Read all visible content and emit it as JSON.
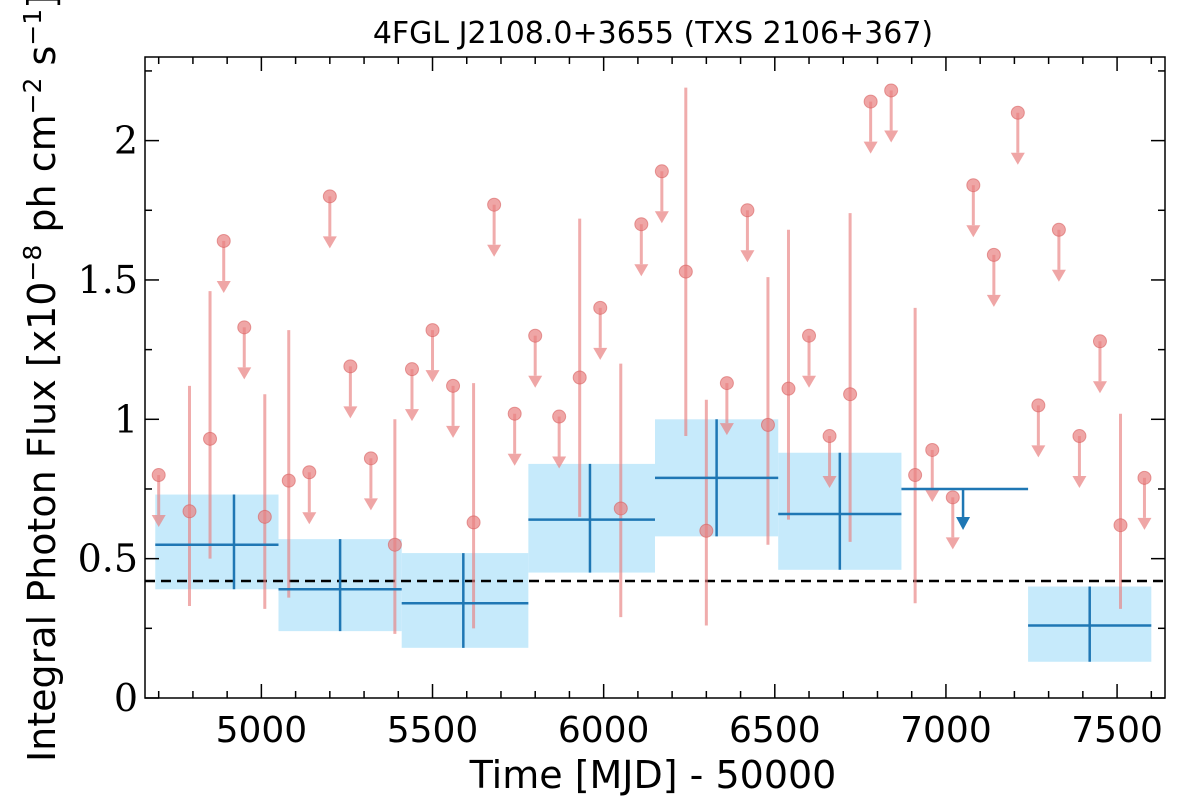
{
  "chart_data": {
    "type": "scatter",
    "title": "4FGL J2108.0+3655 (TXS 2106+367)",
    "xlabel": "Time [MJD] - 50000",
    "ylabel": "Integral Photon Flux [x10",
    "ylabel_exp1": "−8",
    "ylabel_mid": " ph cm",
    "ylabel_exp2": "−2",
    "ylabel_mid2": " s",
    "ylabel_exp3": "−1",
    "ylabel_end": "]",
    "xlim": [
      4660,
      7640
    ],
    "ylim": [
      0,
      2.3
    ],
    "xticks": [
      5000,
      5500,
      6000,
      6500,
      7000,
      7500
    ],
    "xtick_labels": [
      "5000",
      "5500",
      "6000",
      "6500",
      "7000",
      "7500"
    ],
    "yticks": [
      0,
      0.5,
      1,
      1.5,
      2
    ],
    "ytick_labels": [
      "0",
      "0.5",
      "1",
      "1.5",
      "2"
    ],
    "dashed_reference_level": 0.42,
    "colors": {
      "short_bins": "#e88080",
      "long_bins_line": "#1f77b4",
      "long_bins_band": "#c6eafb",
      "reference_line": "#000000"
    },
    "short_bin_detections": [
      {
        "x": 4790,
        "y": 0.67,
        "lo": 0.33,
        "hi": 1.12
      },
      {
        "x": 4850,
        "y": 0.93,
        "lo": 0.5,
        "hi": 1.46
      },
      {
        "x": 5010,
        "y": 0.65,
        "lo": 0.32,
        "hi": 1.09
      },
      {
        "x": 5080,
        "y": 0.78,
        "lo": 0.36,
        "hi": 1.32
      },
      {
        "x": 5390,
        "y": 0.55,
        "lo": 0.23,
        "hi": 1.0
      },
      {
        "x": 5620,
        "y": 0.63,
        "lo": 0.25,
        "hi": 1.13
      },
      {
        "x": 5930,
        "y": 1.15,
        "lo": 0.65,
        "hi": 1.72
      },
      {
        "x": 6050,
        "y": 0.68,
        "lo": 0.29,
        "hi": 1.2
      },
      {
        "x": 6240,
        "y": 1.53,
        "lo": 0.94,
        "hi": 2.19
      },
      {
        "x": 6300,
        "y": 0.6,
        "lo": 0.26,
        "hi": 1.07
      },
      {
        "x": 6480,
        "y": 0.98,
        "lo": 0.55,
        "hi": 1.51
      },
      {
        "x": 6540,
        "y": 1.11,
        "lo": 0.64,
        "hi": 1.68
      },
      {
        "x": 6720,
        "y": 1.09,
        "lo": 0.56,
        "hi": 1.74
      },
      {
        "x": 6910,
        "y": 0.8,
        "lo": 0.34,
        "hi": 1.4
      },
      {
        "x": 7510,
        "y": 0.62,
        "lo": 0.32,
        "hi": 1.02
      }
    ],
    "short_bin_upper_limits": [
      {
        "x": 4700,
        "y": 0.8
      },
      {
        "x": 4890,
        "y": 1.64
      },
      {
        "x": 4950,
        "y": 1.33
      },
      {
        "x": 5140,
        "y": 0.81
      },
      {
        "x": 5200,
        "y": 1.8
      },
      {
        "x": 5260,
        "y": 1.19
      },
      {
        "x": 5320,
        "y": 0.86
      },
      {
        "x": 5440,
        "y": 1.18
      },
      {
        "x": 5500,
        "y": 1.32
      },
      {
        "x": 5560,
        "y": 1.12
      },
      {
        "x": 5680,
        "y": 1.77
      },
      {
        "x": 5740,
        "y": 1.02
      },
      {
        "x": 5800,
        "y": 1.3
      },
      {
        "x": 5870,
        "y": 1.01
      },
      {
        "x": 5990,
        "y": 1.4
      },
      {
        "x": 6110,
        "y": 1.7
      },
      {
        "x": 6170,
        "y": 1.89
      },
      {
        "x": 6360,
        "y": 1.13
      },
      {
        "x": 6420,
        "y": 1.75
      },
      {
        "x": 6600,
        "y": 1.3
      },
      {
        "x": 6660,
        "y": 0.94
      },
      {
        "x": 6780,
        "y": 2.14
      },
      {
        "x": 6840,
        "y": 2.18
      },
      {
        "x": 6960,
        "y": 0.89
      },
      {
        "x": 7020,
        "y": 0.72
      },
      {
        "x": 7080,
        "y": 1.84
      },
      {
        "x": 7140,
        "y": 1.59
      },
      {
        "x": 7210,
        "y": 2.1
      },
      {
        "x": 7270,
        "y": 1.05
      },
      {
        "x": 7330,
        "y": 1.68
      },
      {
        "x": 7390,
        "y": 0.94
      },
      {
        "x": 7450,
        "y": 1.28
      },
      {
        "x": 7580,
        "y": 0.79
      }
    ],
    "long_bins": [
      {
        "x0": 4690,
        "x1": 5050,
        "xc": 4920,
        "y": 0.55,
        "lo": 0.39,
        "hi": 0.73
      },
      {
        "x0": 5050,
        "x1": 5410,
        "xc": 5230,
        "y": 0.39,
        "lo": 0.24,
        "hi": 0.57
      },
      {
        "x0": 5410,
        "x1": 5780,
        "xc": 5590,
        "y": 0.34,
        "lo": 0.18,
        "hi": 0.52
      },
      {
        "x0": 5780,
        "x1": 6150,
        "xc": 5960,
        "y": 0.64,
        "lo": 0.45,
        "hi": 0.84
      },
      {
        "x0": 6150,
        "x1": 6510,
        "xc": 6330,
        "y": 0.79,
        "lo": 0.58,
        "hi": 1.0
      },
      {
        "x0": 6510,
        "x1": 6870,
        "xc": 6690,
        "y": 0.66,
        "lo": 0.46,
        "hi": 0.88
      },
      {
        "x0": 7240,
        "x1": 7600,
        "xc": 7420,
        "y": 0.26,
        "lo": 0.13,
        "hi": 0.4
      }
    ],
    "long_bin_upper_limits": [
      {
        "x0": 6870,
        "x1": 7240,
        "xc": 7050,
        "y": 0.75
      }
    ]
  }
}
